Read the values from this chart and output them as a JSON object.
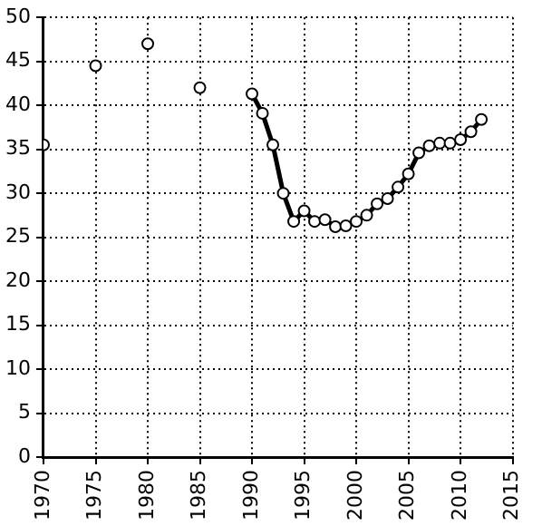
{
  "chart_data": {
    "type": "line",
    "xlim": [
      1970,
      2015
    ],
    "xticks": [
      1970,
      1975,
      1980,
      1985,
      1990,
      1995,
      2000,
      2005,
      2010,
      2015
    ],
    "ylim": [
      0,
      50
    ],
    "yticks": [
      0,
      5,
      10,
      15,
      20,
      25,
      30,
      35,
      40,
      45,
      50
    ],
    "grid": true,
    "legend": false,
    "marker": "circle",
    "series": [
      {
        "type": "scatter",
        "color": "#000000",
        "x": [
          1970,
          1975,
          1980,
          1985
        ],
        "values": [
          35.5,
          44.5,
          47,
          42
        ]
      },
      {
        "color": "#000000",
        "x": [
          1990,
          1991,
          1992,
          1993,
          1994,
          1995,
          1996,
          1997,
          1998,
          1999,
          2000,
          2001,
          2002,
          2003,
          2004,
          2005,
          2006,
          2007,
          2008,
          2009,
          2010,
          2011,
          2012
        ],
        "values": [
          41.3,
          39.1,
          35.5,
          30,
          26.8,
          28,
          26.8,
          27,
          26.2,
          26.3,
          26.8,
          27.5,
          28.8,
          29.4,
          30.7,
          32.2,
          34.6,
          35.4,
          35.7,
          35.7,
          36.1,
          37,
          38.4
        ]
      }
    ]
  }
}
